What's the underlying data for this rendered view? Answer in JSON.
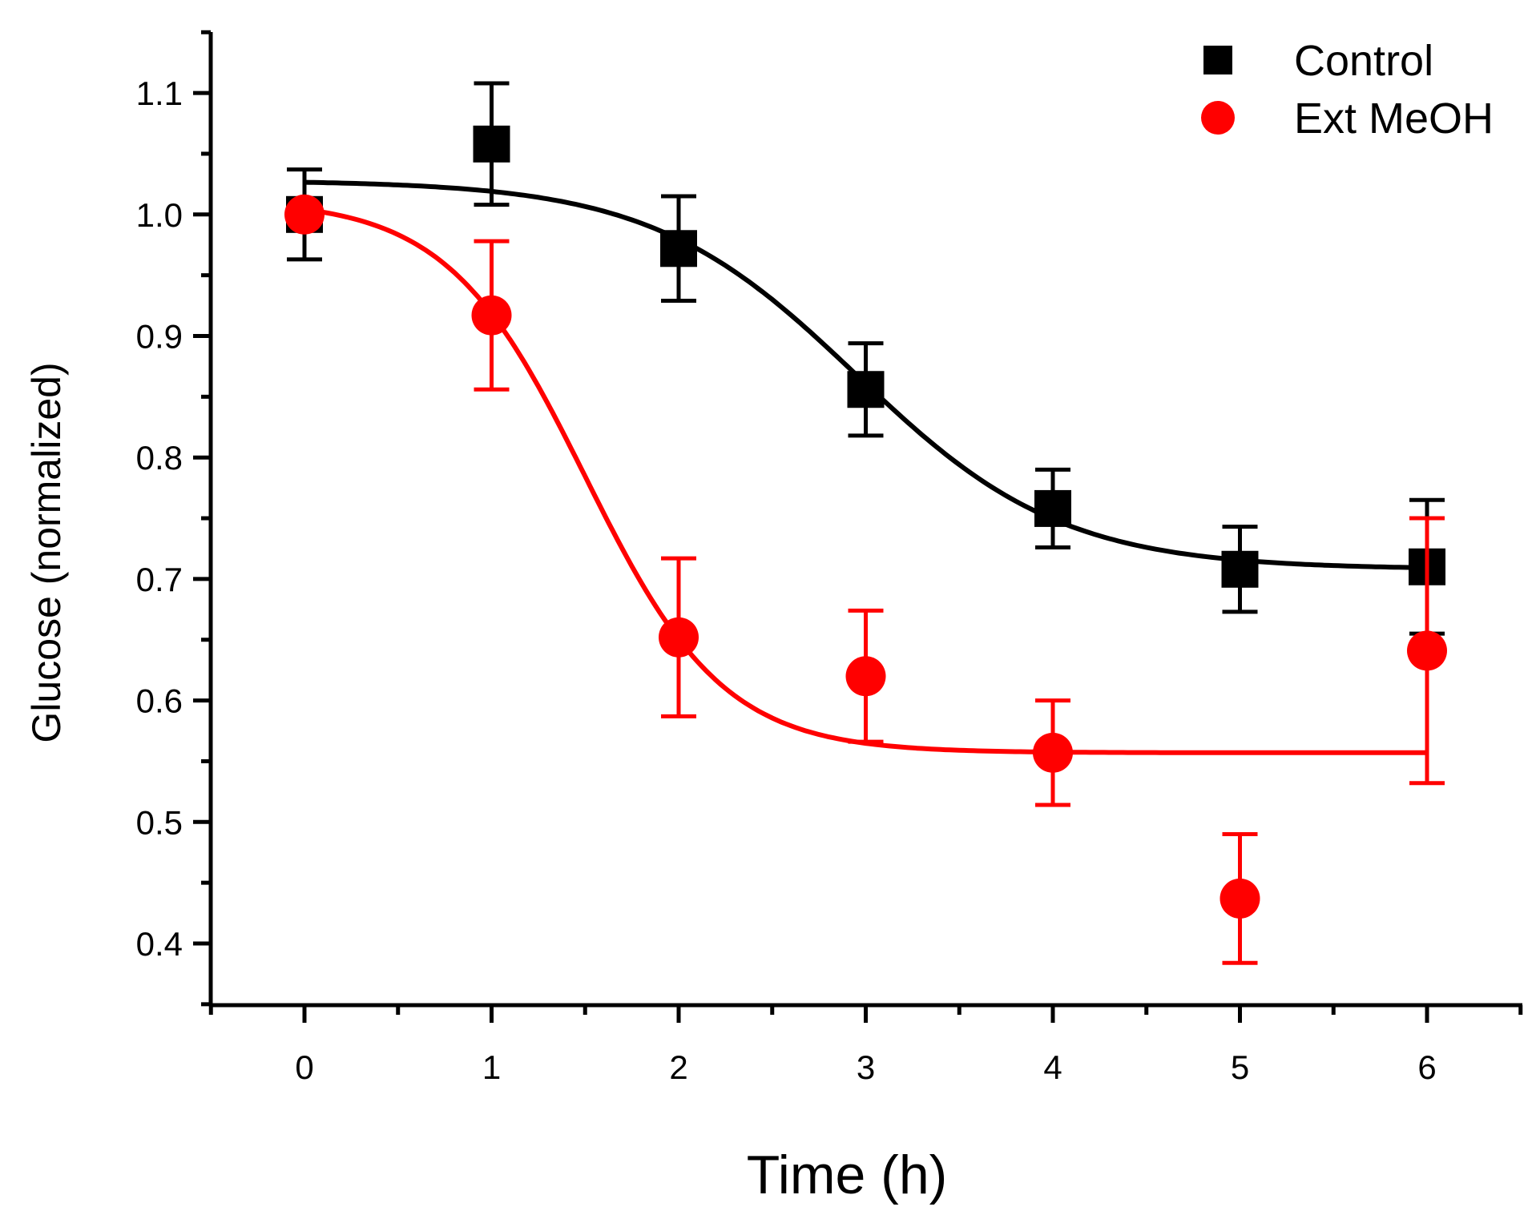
{
  "chart_data": {
    "type": "scatter",
    "xlabel": "Time (h)",
    "ylabel": "Glucose (normalized)",
    "xlim": [
      -0.5,
      6.5
    ],
    "ylim": [
      0.35,
      1.15
    ],
    "x_ticks": [
      "0",
      "1",
      "2",
      "3",
      "4",
      "5",
      "6"
    ],
    "y_ticks": [
      "0.4",
      "0.5",
      "0.6",
      "0.7",
      "0.8",
      "0.9",
      "1.0",
      "1.1"
    ],
    "grid": false,
    "legend_position": "top-right",
    "series": [
      {
        "name": "Control",
        "marker": "square",
        "color": "#000000",
        "x": [
          0,
          1,
          2,
          3,
          4,
          5,
          6
        ],
        "y": [
          1.0,
          1.058,
          0.972,
          0.856,
          0.758,
          0.708,
          0.71
        ],
        "error": [
          0.037,
          0.05,
          0.043,
          0.038,
          0.032,
          0.035,
          0.055
        ],
        "fit": {
          "type": "sigmoid",
          "top": 1.028,
          "bottom": 0.708,
          "x0": 2.95,
          "width": 0.55
        }
      },
      {
        "name": "Ext MeOH",
        "marker": "circle",
        "color": "#ff0000",
        "x": [
          0,
          1,
          2,
          3,
          4,
          5,
          6
        ],
        "y": [
          1.0,
          0.917,
          0.652,
          0.62,
          0.557,
          0.437,
          0.641
        ],
        "error": [
          0.0,
          0.061,
          0.065,
          0.054,
          0.043,
          0.053,
          0.109
        ],
        "fit": {
          "type": "sigmoid",
          "top": 1.012,
          "bottom": 0.557,
          "x0": 1.5,
          "width": 0.37
        }
      }
    ]
  }
}
